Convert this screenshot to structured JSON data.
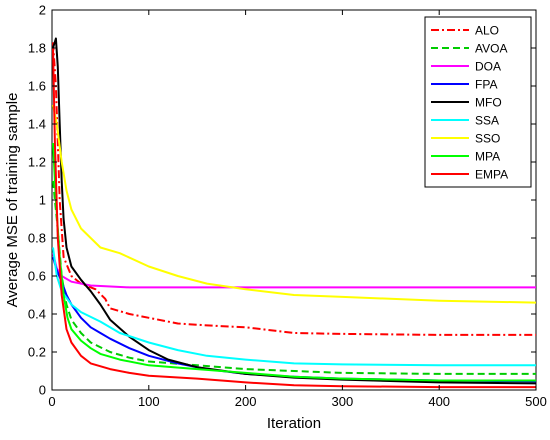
{
  "chart_data": {
    "type": "line",
    "title": "",
    "xlabel": "Iteration",
    "ylabel": "Average MSE of training sample",
    "xlim": [
      0,
      500
    ],
    "ylim": [
      0,
      2
    ],
    "xticks": [
      "0",
      "100",
      "200",
      "300",
      "400",
      "500"
    ],
    "yticks": [
      "0",
      "0.2",
      "0.4",
      "0.6",
      "0.8",
      "1",
      "1.2",
      "1.4",
      "1.6",
      "1.8",
      "2"
    ],
    "grid": false,
    "legend_position": "top-right",
    "series": [
      {
        "name": "ALO",
        "color": "#ff0000",
        "dash": "dashdot",
        "points": [
          [
            1,
            1.83
          ],
          [
            4,
            1.6
          ],
          [
            8,
            1.0
          ],
          [
            12,
            0.7
          ],
          [
            20,
            0.6
          ],
          [
            30,
            0.56
          ],
          [
            45,
            0.53
          ],
          [
            55,
            0.48
          ],
          [
            60,
            0.43
          ],
          [
            80,
            0.4
          ],
          [
            100,
            0.38
          ],
          [
            130,
            0.35
          ],
          [
            160,
            0.34
          ],
          [
            200,
            0.33
          ],
          [
            250,
            0.3
          ],
          [
            300,
            0.295
          ],
          [
            400,
            0.29
          ],
          [
            500,
            0.29
          ]
        ]
      },
      {
        "name": "AVOA",
        "color": "#00cc00",
        "dash": "dash",
        "points": [
          [
            1,
            1.1
          ],
          [
            5,
            0.9
          ],
          [
            10,
            0.6
          ],
          [
            15,
            0.45
          ],
          [
            20,
            0.37
          ],
          [
            30,
            0.3
          ],
          [
            40,
            0.25
          ],
          [
            60,
            0.2
          ],
          [
            80,
            0.17
          ],
          [
            100,
            0.15
          ],
          [
            150,
            0.13
          ],
          [
            200,
            0.11
          ],
          [
            300,
            0.09
          ],
          [
            400,
            0.085
          ],
          [
            500,
            0.085
          ]
        ]
      },
      {
        "name": "DOA",
        "color": "#ff00ff",
        "dash": "solid",
        "points": [
          [
            1,
            0.72
          ],
          [
            5,
            0.64
          ],
          [
            10,
            0.6
          ],
          [
            20,
            0.57
          ],
          [
            40,
            0.55
          ],
          [
            80,
            0.54
          ],
          [
            150,
            0.54
          ],
          [
            300,
            0.54
          ],
          [
            500,
            0.54
          ]
        ]
      },
      {
        "name": "FPA",
        "color": "#0000ff",
        "dash": "solid",
        "points": [
          [
            1,
            0.7
          ],
          [
            5,
            0.63
          ],
          [
            10,
            0.57
          ],
          [
            15,
            0.5
          ],
          [
            20,
            0.45
          ],
          [
            30,
            0.38
          ],
          [
            40,
            0.33
          ],
          [
            50,
            0.3
          ],
          [
            60,
            0.27
          ],
          [
            80,
            0.22
          ],
          [
            100,
            0.18
          ],
          [
            130,
            0.14
          ],
          [
            160,
            0.11
          ],
          [
            200,
            0.085
          ],
          [
            250,
            0.07
          ],
          [
            300,
            0.06
          ],
          [
            400,
            0.05
          ],
          [
            500,
            0.045
          ]
        ]
      },
      {
        "name": "MFO",
        "color": "#000000",
        "dash": "solid",
        "points": [
          [
            1,
            1.8
          ],
          [
            4,
            1.85
          ],
          [
            6,
            1.7
          ],
          [
            8,
            1.4
          ],
          [
            10,
            1.1
          ],
          [
            12,
            0.9
          ],
          [
            15,
            0.75
          ],
          [
            20,
            0.65
          ],
          [
            30,
            0.58
          ],
          [
            40,
            0.52
          ],
          [
            50,
            0.45
          ],
          [
            60,
            0.37
          ],
          [
            80,
            0.28
          ],
          [
            100,
            0.21
          ],
          [
            120,
            0.16
          ],
          [
            150,
            0.12
          ],
          [
            200,
            0.085
          ],
          [
            250,
            0.065
          ],
          [
            300,
            0.055
          ],
          [
            400,
            0.04
          ],
          [
            500,
            0.035
          ]
        ]
      },
      {
        "name": "SSA",
        "color": "#00ffff",
        "dash": "solid",
        "points": [
          [
            1,
            0.75
          ],
          [
            5,
            0.6
          ],
          [
            10,
            0.52
          ],
          [
            20,
            0.45
          ],
          [
            30,
            0.41
          ],
          [
            50,
            0.36
          ],
          [
            70,
            0.3
          ],
          [
            100,
            0.25
          ],
          [
            130,
            0.21
          ],
          [
            160,
            0.18
          ],
          [
            200,
            0.16
          ],
          [
            250,
            0.14
          ],
          [
            300,
            0.135
          ],
          [
            400,
            0.13
          ],
          [
            500,
            0.13
          ]
        ]
      },
      {
        "name": "SSO",
        "color": "#ffff00",
        "dash": "solid",
        "points": [
          [
            1,
            1.5
          ],
          [
            5,
            1.4
          ],
          [
            10,
            1.2
          ],
          [
            15,
            1.05
          ],
          [
            20,
            0.95
          ],
          [
            30,
            0.85
          ],
          [
            50,
            0.75
          ],
          [
            70,
            0.72
          ],
          [
            100,
            0.65
          ],
          [
            130,
            0.6
          ],
          [
            160,
            0.56
          ],
          [
            200,
            0.53
          ],
          [
            250,
            0.5
          ],
          [
            300,
            0.49
          ],
          [
            400,
            0.47
          ],
          [
            500,
            0.46
          ]
        ]
      },
      {
        "name": "MPA",
        "color": "#00ff00",
        "dash": "solid",
        "points": [
          [
            1,
            1.3
          ],
          [
            4,
            1.0
          ],
          [
            8,
            0.7
          ],
          [
            12,
            0.5
          ],
          [
            16,
            0.38
          ],
          [
            20,
            0.32
          ],
          [
            30,
            0.26
          ],
          [
            40,
            0.22
          ],
          [
            50,
            0.19
          ],
          [
            70,
            0.16
          ],
          [
            100,
            0.13
          ],
          [
            150,
            0.11
          ],
          [
            200,
            0.09
          ],
          [
            250,
            0.07
          ],
          [
            300,
            0.06
          ],
          [
            400,
            0.05
          ],
          [
            500,
            0.05
          ]
        ]
      },
      {
        "name": "EMPA",
        "color": "#ff0000",
        "dash": "solid",
        "points": [
          [
            1,
            1.8
          ],
          [
            3,
            1.3
          ],
          [
            6,
            0.8
          ],
          [
            10,
            0.5
          ],
          [
            15,
            0.32
          ],
          [
            20,
            0.25
          ],
          [
            30,
            0.18
          ],
          [
            40,
            0.14
          ],
          [
            60,
            0.11
          ],
          [
            80,
            0.09
          ],
          [
            100,
            0.075
          ],
          [
            150,
            0.06
          ],
          [
            200,
            0.04
          ],
          [
            250,
            0.025
          ],
          [
            300,
            0.02
          ],
          [
            400,
            0.015
          ],
          [
            500,
            0.015
          ]
        ]
      }
    ]
  }
}
